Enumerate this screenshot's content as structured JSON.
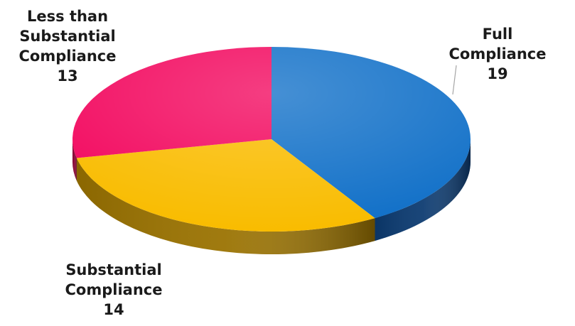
{
  "chart_data": {
    "type": "pie",
    "style": "3d",
    "title": "",
    "slices": [
      {
        "label_lines": [
          "Full",
          "Compliance"
        ],
        "value": 19,
        "color": "#1170C8",
        "side_color": "#0B3A70"
      },
      {
        "label_lines": [
          "Substantial",
          "Compliance"
        ],
        "value": 14,
        "color": "#F9BC00",
        "side_color": "#9A7200"
      },
      {
        "label_lines": [
          "Less than",
          "Substantial",
          "Compliance"
        ],
        "value": 13,
        "color": "#F2075E",
        "side_color": "#8C0434"
      }
    ],
    "legend": "none",
    "leader_line_color": "#a6a6a6"
  }
}
